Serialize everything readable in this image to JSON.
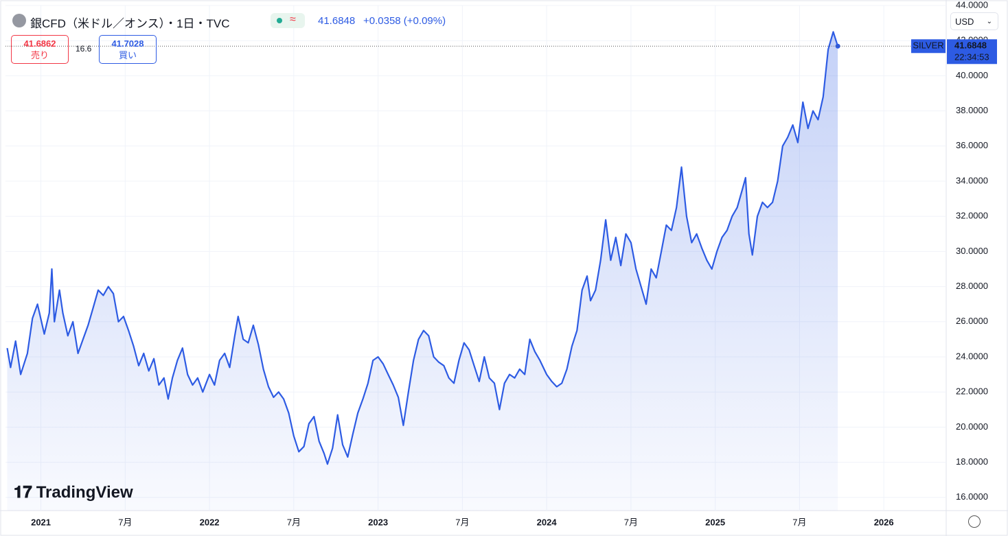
{
  "chart_data": {
    "type": "line",
    "title": "銀CFD（米ドル／オンス）・1日・TVC",
    "last_price": 41.6848,
    "change": "+0.0358 (+0.09%)",
    "sell": {
      "price": "41.6862",
      "label": "売り"
    },
    "spread": "16.6",
    "buy": {
      "price": "41.7028",
      "label": "買い"
    },
    "currency": "USD",
    "timer": "22:34:53",
    "logo": "TradingView",
    "grid": true,
    "xlim": [
      2020.79,
      2026.37
    ],
    "ylim": [
      15.25,
      44
    ],
    "xticks": [
      {
        "value": 2021,
        "label": "2021"
      },
      {
        "value": 2021.5,
        "label": "7月"
      },
      {
        "value": 2022,
        "label": "2022"
      },
      {
        "value": 2022.5,
        "label": "7月"
      },
      {
        "value": 2023,
        "label": "2023"
      },
      {
        "value": 2023.5,
        "label": "7月"
      },
      {
        "value": 2024,
        "label": "2024"
      },
      {
        "value": 2024.5,
        "label": "7月"
      },
      {
        "value": 2025,
        "label": "2025"
      },
      {
        "value": 2025.5,
        "label": "7月"
      },
      {
        "value": 2026,
        "label": "2026"
      }
    ],
    "yticks": [
      {
        "value": 16,
        "label": "16.0000"
      },
      {
        "value": 18,
        "label": "18.0000"
      },
      {
        "value": 20,
        "label": "20.0000"
      },
      {
        "value": 22,
        "label": "22.0000"
      },
      {
        "value": 24,
        "label": "24.0000"
      },
      {
        "value": 26,
        "label": "26.0000"
      },
      {
        "value": 28,
        "label": "28.0000"
      },
      {
        "value": 30,
        "label": "30.0000"
      },
      {
        "value": 32,
        "label": "32.0000"
      },
      {
        "value": 34,
        "label": "34.0000"
      },
      {
        "value": 36,
        "label": "36.0000"
      },
      {
        "value": 38,
        "label": "38.0000"
      },
      {
        "value": 40,
        "label": "40.0000"
      },
      {
        "value": 42,
        "label": "42.0000"
      },
      {
        "value": 44,
        "label": "44.0000"
      }
    ],
    "x": [
      2020.8,
      2020.82,
      2020.85,
      2020.88,
      2020.92,
      2020.95,
      2020.98,
      2021.02,
      2021.05,
      2021.065,
      2021.08,
      2021.11,
      2021.13,
      2021.16,
      2021.19,
      2021.22,
      2021.25,
      2021.28,
      2021.31,
      2021.34,
      2021.37,
      2021.4,
      2021.43,
      2021.46,
      2021.49,
      2021.52,
      2021.55,
      2021.58,
      2021.61,
      2021.64,
      2021.67,
      2021.7,
      2021.73,
      2021.755,
      2021.78,
      2021.81,
      2021.84,
      2021.87,
      2021.9,
      2021.93,
      2021.96,
      2022,
      2022.03,
      2022.06,
      2022.09,
      2022.12,
      2022.15,
      2022.17,
      2022.2,
      2022.23,
      2022.26,
      2022.29,
      2022.32,
      2022.35,
      2022.38,
      2022.41,
      2022.44,
      2022.47,
      2022.5,
      2022.53,
      2022.56,
      2022.59,
      2022.62,
      2022.65,
      2022.68,
      2022.7,
      2022.73,
      2022.76,
      2022.79,
      2022.82,
      2022.85,
      2022.88,
      2022.91,
      2022.94,
      2022.97,
      2023,
      2023.03,
      2023.06,
      2023.09,
      2023.12,
      2023.15,
      2023.18,
      2023.21,
      2023.24,
      2023.27,
      2023.3,
      2023.33,
      2023.36,
      2023.39,
      2023.42,
      2023.45,
      2023.48,
      2023.51,
      2023.54,
      2023.57,
      2023.6,
      2023.63,
      2023.66,
      2023.69,
      2023.72,
      2023.75,
      2023.78,
      2023.81,
      2023.84,
      2023.87,
      2023.9,
      2023.93,
      2023.96,
      2024,
      2024.03,
      2024.06,
      2024.09,
      2024.12,
      2024.15,
      2024.18,
      2024.21,
      2024.24,
      2024.26,
      2024.29,
      2024.32,
      2024.35,
      2024.38,
      2024.41,
      2024.44,
      2024.47,
      2024.5,
      2024.53,
      2024.56,
      2024.59,
      2024.62,
      2024.65,
      2024.68,
      2024.71,
      2024.74,
      2024.77,
      2024.8,
      2024.83,
      2024.86,
      2024.89,
      2024.92,
      2024.95,
      2024.98,
      2025.01,
      2025.04,
      2025.07,
      2025.1,
      2025.13,
      2025.16,
      2025.18,
      2025.2,
      2025.22,
      2025.25,
      2025.28,
      2025.31,
      2025.34,
      2025.37,
      2025.4,
      2025.43,
      2025.46,
      2025.49,
      2025.52,
      2025.55,
      2025.58,
      2025.61,
      2025.64,
      2025.67,
      2025.7,
      2025.727
    ],
    "series": [
      {
        "name": "SILVER",
        "color": "#2d5be3",
        "values": [
          24.5,
          23.4,
          24.9,
          23,
          24.2,
          26.2,
          27,
          25.3,
          26.5,
          29,
          26,
          27.8,
          26.5,
          25.2,
          26,
          24.2,
          25,
          25.8,
          26.8,
          27.8,
          27.5,
          28,
          27.6,
          26,
          26.3,
          25.5,
          24.6,
          23.5,
          24.2,
          23.2,
          23.9,
          22.4,
          22.8,
          21.6,
          22.8,
          23.8,
          24.5,
          23,
          22.4,
          22.8,
          22,
          23,
          22.4,
          23.8,
          24.2,
          23.4,
          25.2,
          26.3,
          25,
          24.8,
          25.8,
          24.7,
          23.3,
          22.3,
          21.7,
          22,
          21.6,
          20.8,
          19.5,
          18.6,
          18.9,
          20.2,
          20.6,
          19.2,
          18.5,
          17.9,
          18.8,
          20.7,
          19,
          18.3,
          19.6,
          20.8,
          21.6,
          22.5,
          23.8,
          24,
          23.6,
          23,
          22.4,
          21.7,
          20.1,
          22,
          23.8,
          25,
          25.5,
          25.2,
          24,
          23.7,
          23.5,
          22.8,
          22.5,
          23.8,
          24.8,
          24.4,
          23.5,
          22.6,
          24,
          22.8,
          22.5,
          21,
          22.5,
          23,
          22.8,
          23.3,
          23,
          25,
          24.3,
          23.8,
          23,
          22.6,
          22.3,
          22.5,
          23.3,
          24.6,
          25.5,
          27.8,
          28.6,
          27.2,
          27.8,
          29.5,
          31.8,
          29.5,
          30.8,
          29.2,
          31,
          30.5,
          29,
          28,
          27,
          29,
          28.5,
          30,
          31.5,
          31.2,
          32.5,
          34.8,
          32,
          30.5,
          31,
          30.2,
          29.5,
          29,
          30,
          30.8,
          31.2,
          32,
          32.5,
          33.5,
          34.2,
          31,
          29.8,
          32,
          32.8,
          32.5,
          32.8,
          34,
          36,
          36.5,
          37.2,
          36.2,
          38.5,
          37,
          38,
          37.5,
          38.8,
          41.5,
          42.5,
          41.6848
        ]
      }
    ]
  }
}
